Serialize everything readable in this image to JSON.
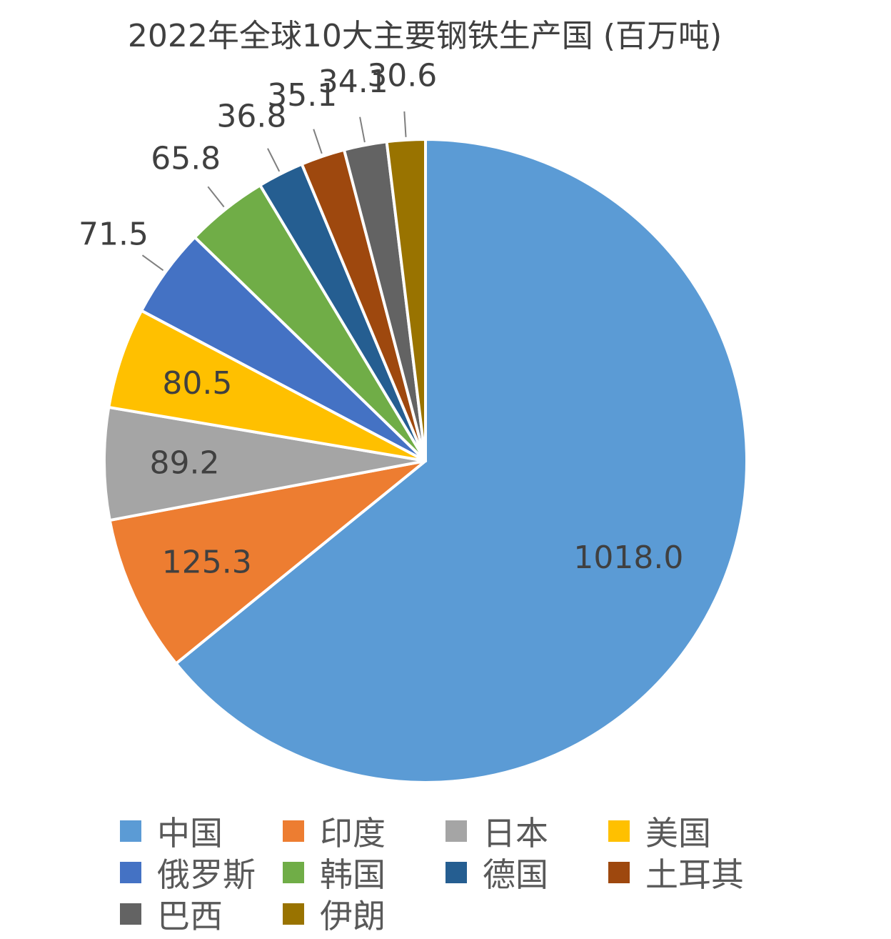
{
  "chart_data": {
    "type": "pie",
    "title": "2022年全球10大主要钢铁生产国 (百万吨)",
    "categories": [
      "中国",
      "印度",
      "日本",
      "美国",
      "俄罗斯",
      "韩国",
      "德国",
      "土耳其",
      "巴西",
      "伊朗"
    ],
    "values": [
      1018.0,
      125.3,
      89.2,
      80.5,
      71.5,
      65.8,
      36.8,
      35.1,
      34.1,
      30.6
    ],
    "labels": [
      "1018.0",
      "125.3",
      "89.2",
      "80.5",
      "71.5",
      "65.8",
      "36.8",
      "35.1",
      "34.1",
      "30.6"
    ],
    "colors": [
      "#5B9BD5",
      "#ED7D31",
      "#A5A5A5",
      "#FFC000",
      "#4472C4",
      "#70AD47",
      "#255E91",
      "#9E480E",
      "#636363",
      "#997300"
    ],
    "label_placement": [
      "inside",
      "inside",
      "inside",
      "inside",
      "outside",
      "outside",
      "outside",
      "outside",
      "outside",
      "outside"
    ],
    "legend_position": "bottom",
    "start": "12 o'clock, clockwise"
  }
}
